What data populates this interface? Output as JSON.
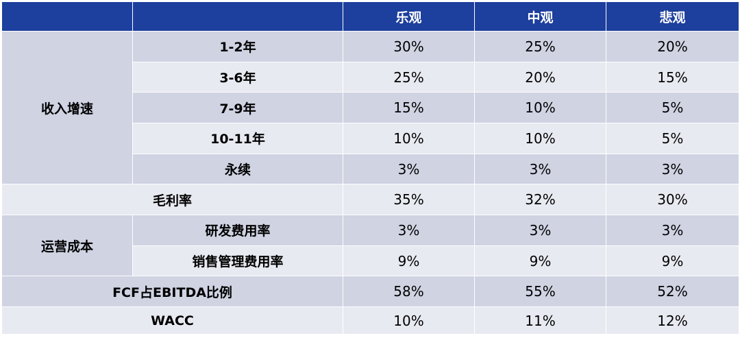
{
  "header": {
    "scenarios": [
      "乐观",
      "中观",
      "悲观"
    ]
  },
  "groups": {
    "revenue_growth": "收入增速",
    "operating_cost": "运营成本"
  },
  "rows": [
    {
      "label": "1-2年",
      "values": [
        "30%",
        "25%",
        "20%"
      ]
    },
    {
      "label": "3-6年",
      "values": [
        "25%",
        "20%",
        "15%"
      ]
    },
    {
      "label": "7-9年",
      "values": [
        "15%",
        "10%",
        "5%"
      ]
    },
    {
      "label": "10-11年",
      "values": [
        "10%",
        "10%",
        "5%"
      ]
    },
    {
      "label": "永续",
      "values": [
        "3%",
        "3%",
        "3%"
      ]
    },
    {
      "label": "毛利率",
      "values": [
        "35%",
        "32%",
        "30%"
      ]
    },
    {
      "label": "研发费用率",
      "values": [
        "3%",
        "3%",
        "3%"
      ]
    },
    {
      "label": "销售管理费用率",
      "values": [
        "9%",
        "9%",
        "9%"
      ]
    },
    {
      "label": "FCF占EBITDA比例",
      "values": [
        "58%",
        "55%",
        "52%"
      ]
    },
    {
      "label": "WACC",
      "values": [
        "10%",
        "11%",
        "12%"
      ]
    }
  ]
}
